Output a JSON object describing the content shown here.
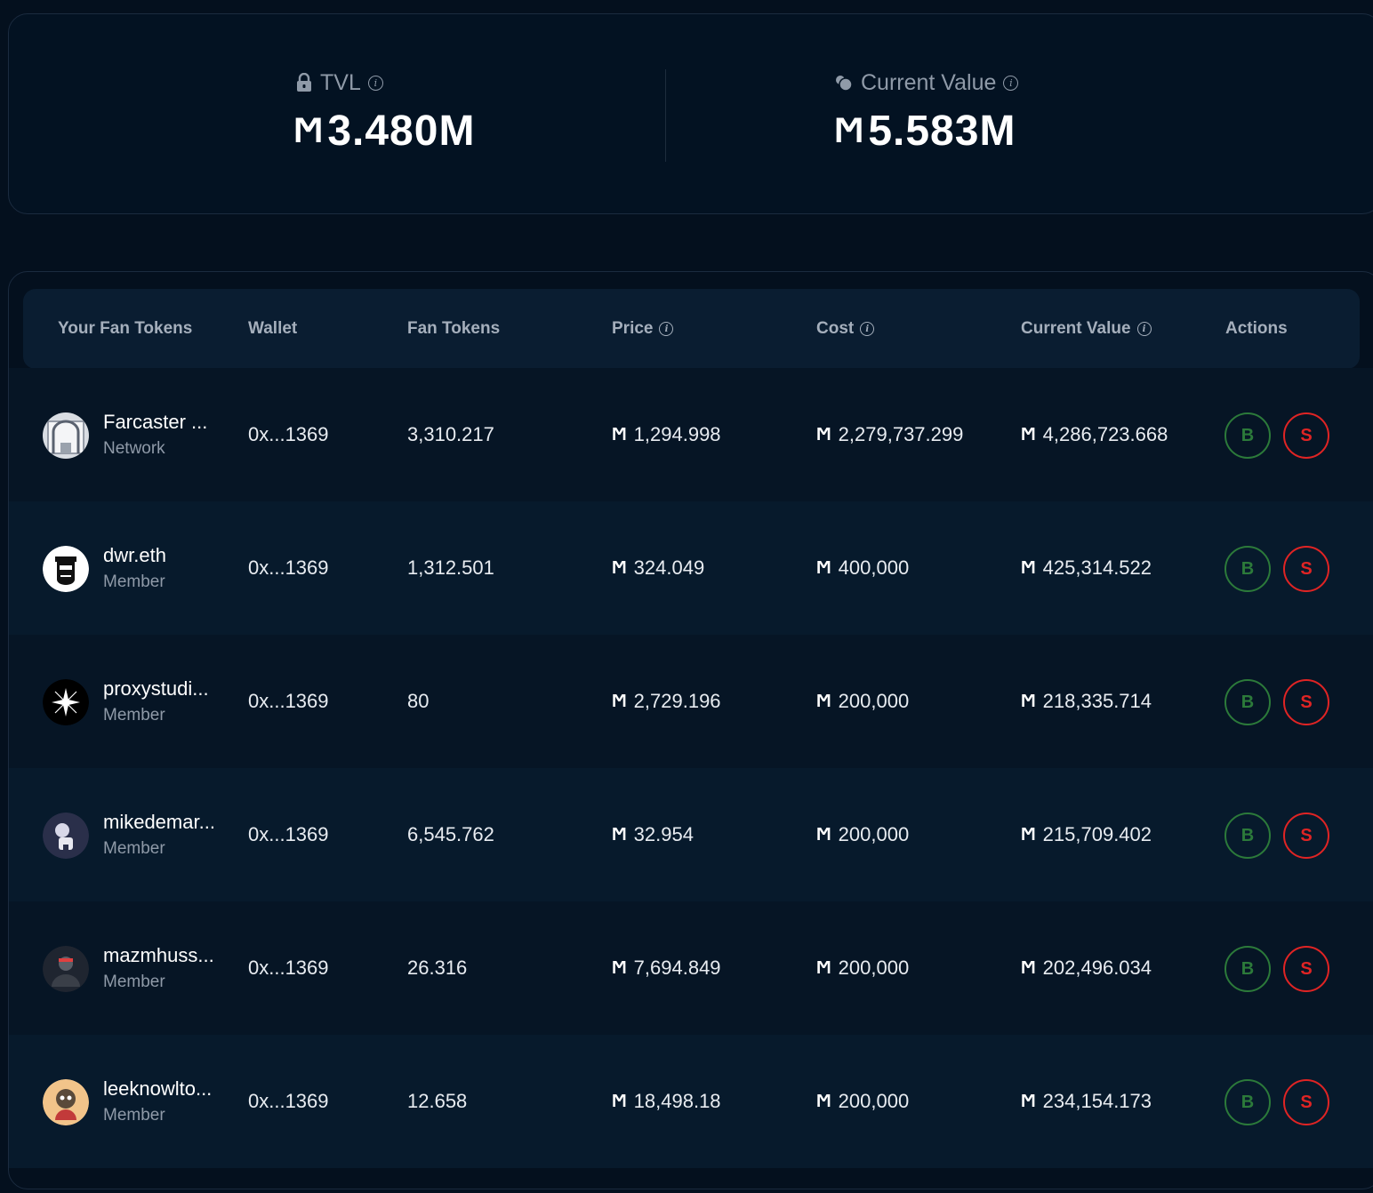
{
  "summary": {
    "tvl": {
      "label": "TVL",
      "value": "3.480M",
      "icon": "lock-icon"
    },
    "current_value": {
      "label": "Current Value",
      "value": "5.583M",
      "icon": "coins-icon"
    },
    "currency_symbol": "Ϻ"
  },
  "table": {
    "headers": {
      "tokens": "Your Fan Tokens",
      "wallet": "Wallet",
      "fan_tokens": "Fan Tokens",
      "price": "Price",
      "cost": "Cost",
      "current_value": "Current Value",
      "actions": "Actions"
    },
    "buy_label": "B",
    "sell_label": "S",
    "rows": [
      {
        "name": "Farcaster ...",
        "role": "Network",
        "wallet": "0x...1369",
        "fan_tokens": "3,310.217",
        "price": "1,294.998",
        "cost": "2,279,737.299",
        "current_value": "4,286,723.668",
        "avatar": "farcaster-avatar"
      },
      {
        "name": "dwr.eth",
        "role": "Member",
        "wallet": "0x...1369",
        "fan_tokens": "1,312.501",
        "price": "324.049",
        "cost": "400,000",
        "current_value": "425,314.522",
        "avatar": "dwr-avatar"
      },
      {
        "name": "proxystudi...",
        "role": "Member",
        "wallet": "0x...1369",
        "fan_tokens": "80",
        "price": "2,729.196",
        "cost": "200,000",
        "current_value": "218,335.714",
        "avatar": "proxystudio-avatar"
      },
      {
        "name": "mikedemar...",
        "role": "Member",
        "wallet": "0x...1369",
        "fan_tokens": "6,545.762",
        "price": "32.954",
        "cost": "200,000",
        "current_value": "215,709.402",
        "avatar": "mikedemar-avatar"
      },
      {
        "name": "mazmhuss...",
        "role": "Member",
        "wallet": "0x...1369",
        "fan_tokens": "26.316",
        "price": "7,694.849",
        "cost": "200,000",
        "current_value": "202,496.034",
        "avatar": "mazmhuss-avatar"
      },
      {
        "name": "leeknowlto...",
        "role": "Member",
        "wallet": "0x...1369",
        "fan_tokens": "12.658",
        "price": "18,498.18",
        "cost": "200,000",
        "current_value": "234,154.173",
        "avatar": "leeknowlto-avatar"
      }
    ]
  }
}
